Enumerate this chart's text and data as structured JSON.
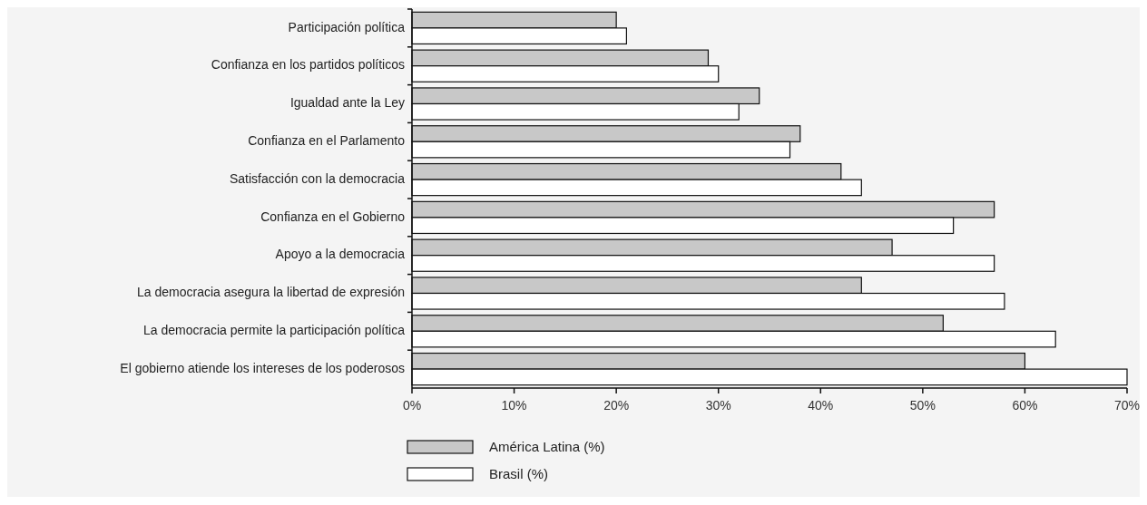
{
  "chart_data": {
    "type": "bar",
    "orientation": "horizontal",
    "categories": [
      "Participación política",
      "Confianza en los partidos políticos",
      "Igualdad ante la Ley",
      "Confianza en el Parlamento",
      "Satisfacción con la democracia",
      "Confianza en el Gobierno",
      "Apoyo a la democracia",
      "La democracia asegura la libertad de expresión",
      "La democracia permite la participación política",
      "El gobierno atiende los intereses de los poderosos"
    ],
    "series": [
      {
        "name": "América Latina (%)",
        "color": "#c8c8c8",
        "values": [
          20,
          29,
          34,
          38,
          42,
          57,
          47,
          44,
          52,
          60
        ]
      },
      {
        "name": "Brasil (%)",
        "color": "#ffffff",
        "values": [
          21,
          30,
          32,
          37,
          44,
          53,
          57,
          58,
          63,
          70
        ]
      }
    ],
    "xlim": [
      0,
      70
    ],
    "xticks": [
      {
        "value": 0,
        "label": "0%"
      },
      {
        "value": 10,
        "label": "10%"
      },
      {
        "value": 20,
        "label": "20%"
      },
      {
        "value": 30,
        "label": "30%"
      },
      {
        "value": 40,
        "label": "40%"
      },
      {
        "value": 50,
        "label": "50%"
      },
      {
        "value": 60,
        "label": "60%"
      },
      {
        "value": 70,
        "label": "70%"
      }
    ],
    "grid": false,
    "legend": "bottom"
  }
}
